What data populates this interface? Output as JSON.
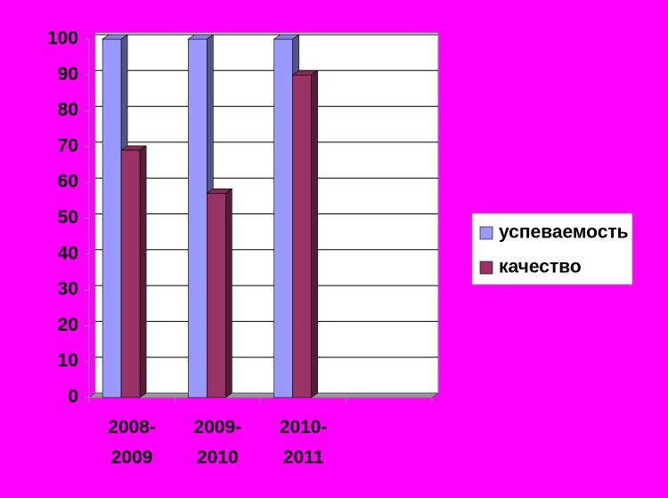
{
  "chart_data": {
    "type": "bar3d",
    "categories": [
      "2008-\n2009",
      "2009-\n2010",
      "2010-\n2011",
      null
    ],
    "series": [
      {
        "name": "успеваемость",
        "color": "#9999ff",
        "values": [
          100,
          100,
          100,
          null
        ]
      },
      {
        "name": "качество",
        "color": "#993366",
        "values": [
          69,
          57,
          90,
          null
        ]
      }
    ],
    "ylim": [
      0,
      100
    ],
    "yticks": [
      0,
      10,
      20,
      30,
      40,
      50,
      60,
      70,
      80,
      90,
      100
    ],
    "grid": true,
    "legend": "right"
  }
}
